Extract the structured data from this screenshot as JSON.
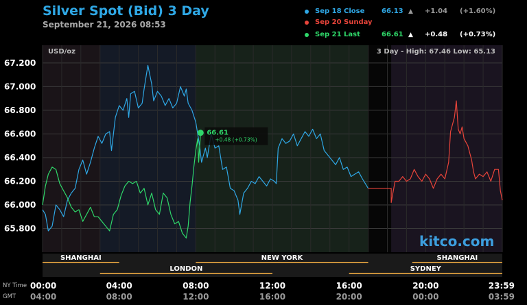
{
  "header": {
    "title": "Silver Spot (Bid) 3 Day",
    "subtitle": "September 21, 2026 08:53"
  },
  "legend": [
    {
      "name": "Sep 18 Close",
      "price": "66.13",
      "arrow": "▲",
      "change": "+1.04",
      "percent": "(+1.60%)",
      "color": "#2fa8e6",
      "textcolor": "#2fa8e6",
      "valcolor": "#999999"
    },
    {
      "name": "Sep 20 Sunday",
      "price": "",
      "arrow": "",
      "change": "",
      "percent": "",
      "color": "#e8443a",
      "textcolor": "#e8443a",
      "valcolor": "#999999"
    },
    {
      "name": "Sep 21 Last",
      "price": "66.61",
      "arrow": "▲",
      "change": "+0.48",
      "percent": "(+0.73%)",
      "color": "#2fd86a",
      "textcolor": "#2fd86a",
      "valcolor": "#ffffff"
    }
  ],
  "unit_label": "USD/oz",
  "range_text": "3 Day - High: 67.46  Low: 65.13",
  "brand": "kitco.com",
  "annotation": {
    "price": "66.61",
    "change": "+0.48 (+0.73%)",
    "x": 8.25,
    "y": 66.61
  },
  "sessions_top": [
    {
      "label": "SHANGHAI",
      "start": 0,
      "end": 4
    },
    {
      "label": "NEW YORK",
      "start": 8,
      "end": 17
    },
    {
      "label": "SHANGHAI",
      "start": 19.3,
      "end": 24
    }
  ],
  "sessions_bottom": [
    {
      "label": "LONDON",
      "start": 3,
      "end": 12
    },
    {
      "label": "SYDNEY",
      "start": 16,
      "end": 24
    }
  ],
  "time_axis": {
    "row1_label": "NY Time",
    "row2_label": "GMT",
    "ticks": [
      {
        "x": 0,
        "ny": "00:00",
        "gmt": "04:00"
      },
      {
        "x": 4,
        "ny": "04:00",
        "gmt": "08:00"
      },
      {
        "x": 8,
        "ny": "08:00",
        "gmt": "12:00"
      },
      {
        "x": 12,
        "ny": "12:00",
        "gmt": "16:00"
      },
      {
        "x": 16,
        "ny": "16:00",
        "gmt": "20:00"
      },
      {
        "x": 20,
        "ny": "20:00",
        "gmt": "00:00"
      },
      {
        "x": 24,
        "ny": "23:59",
        "gmt": "03:59"
      }
    ]
  },
  "colors": {
    "day1": "#2fa8e6",
    "day2": "#e8443a",
    "day3": "#2fd86a",
    "session_line": "#c8903a",
    "grid": "#3a3a3a"
  },
  "chart_data": {
    "type": "line",
    "x_unit": "hours (NY time)",
    "xlim": [
      0,
      24
    ],
    "ylim": [
      65.6,
      67.35
    ],
    "yticks": [
      65.8,
      66.0,
      66.2,
      66.4,
      66.6,
      66.8,
      67.0,
      67.2
    ],
    "ytick_labels": [
      "65.800",
      "66.000",
      "66.200",
      "66.400",
      "66.600",
      "66.800",
      "67.000",
      "67.200"
    ],
    "grid": true,
    "series": [
      {
        "name": "Sep 18 Close",
        "points": [
          [
            0,
            65.96
          ],
          [
            0.15,
            65.92
          ],
          [
            0.3,
            65.78
          ],
          [
            0.5,
            65.82
          ],
          [
            0.7,
            66.0
          ],
          [
            0.9,
            65.96
          ],
          [
            1.1,
            65.9
          ],
          [
            1.3,
            66.04
          ],
          [
            1.5,
            66.1
          ],
          [
            1.7,
            66.14
          ],
          [
            1.9,
            66.3
          ],
          [
            2.1,
            66.38
          ],
          [
            2.3,
            66.26
          ],
          [
            2.5,
            66.36
          ],
          [
            2.7,
            66.48
          ],
          [
            2.9,
            66.58
          ],
          [
            3.1,
            66.52
          ],
          [
            3.3,
            66.6
          ],
          [
            3.5,
            66.62
          ],
          [
            3.6,
            66.46
          ],
          [
            3.8,
            66.74
          ],
          [
            4.0,
            66.84
          ],
          [
            4.2,
            66.8
          ],
          [
            4.4,
            66.9
          ],
          [
            4.5,
            66.74
          ],
          [
            4.6,
            66.94
          ],
          [
            4.8,
            66.96
          ],
          [
            5.0,
            66.82
          ],
          [
            5.2,
            66.86
          ],
          [
            5.3,
            66.98
          ],
          [
            5.5,
            67.18
          ],
          [
            5.6,
            67.1
          ],
          [
            5.7,
            67.02
          ],
          [
            5.8,
            66.88
          ],
          [
            6.0,
            66.96
          ],
          [
            6.2,
            66.92
          ],
          [
            6.4,
            66.84
          ],
          [
            6.6,
            66.9
          ],
          [
            6.8,
            66.82
          ],
          [
            7.0,
            66.86
          ],
          [
            7.2,
            67.0
          ],
          [
            7.4,
            66.92
          ],
          [
            7.5,
            66.98
          ],
          [
            7.6,
            66.86
          ],
          [
            7.8,
            66.8
          ],
          [
            8.0,
            66.7
          ],
          [
            8.2,
            66.5
          ],
          [
            8.3,
            66.36
          ],
          [
            8.5,
            66.48
          ],
          [
            8.6,
            66.4
          ],
          [
            8.8,
            66.6
          ],
          [
            9.0,
            66.48
          ],
          [
            9.2,
            66.5
          ],
          [
            9.4,
            66.3
          ],
          [
            9.6,
            66.32
          ],
          [
            9.8,
            66.14
          ],
          [
            10.0,
            66.12
          ],
          [
            10.2,
            66.04
          ],
          [
            10.3,
            65.92
          ],
          [
            10.5,
            66.1
          ],
          [
            10.7,
            66.14
          ],
          [
            10.9,
            66.2
          ],
          [
            11.1,
            66.18
          ],
          [
            11.3,
            66.24
          ],
          [
            11.5,
            66.2
          ],
          [
            11.7,
            66.16
          ],
          [
            11.9,
            66.22
          ],
          [
            12.1,
            66.2
          ],
          [
            12.2,
            66.18
          ],
          [
            12.3,
            66.48
          ],
          [
            12.5,
            66.56
          ],
          [
            12.7,
            66.52
          ],
          [
            12.9,
            66.54
          ],
          [
            13.1,
            66.6
          ],
          [
            13.3,
            66.5
          ],
          [
            13.5,
            66.56
          ],
          [
            13.7,
            66.62
          ],
          [
            13.9,
            66.58
          ],
          [
            14.1,
            66.64
          ],
          [
            14.3,
            66.56
          ],
          [
            14.5,
            66.6
          ],
          [
            14.7,
            66.46
          ],
          [
            14.9,
            66.42
          ],
          [
            15.1,
            66.38
          ],
          [
            15.3,
            66.34
          ],
          [
            15.5,
            66.4
          ],
          [
            15.7,
            66.3
          ],
          [
            15.9,
            66.32
          ],
          [
            16.1,
            66.24
          ],
          [
            16.3,
            66.26
          ],
          [
            16.5,
            66.28
          ],
          [
            16.7,
            66.22
          ],
          [
            16.85,
            66.18
          ],
          [
            17.0,
            66.14
          ]
        ]
      },
      {
        "name": "Sep 20 Sunday",
        "points": [
          [
            17.0,
            66.14
          ],
          [
            18.2,
            66.14
          ],
          [
            18.2,
            66.02
          ],
          [
            18.4,
            66.2
          ],
          [
            18.6,
            66.2
          ],
          [
            18.8,
            66.24
          ],
          [
            19.0,
            66.2
          ],
          [
            19.2,
            66.22
          ],
          [
            19.4,
            66.3
          ],
          [
            19.6,
            66.24
          ],
          [
            19.8,
            66.2
          ],
          [
            20.0,
            66.26
          ],
          [
            20.2,
            66.22
          ],
          [
            20.4,
            66.14
          ],
          [
            20.6,
            66.22
          ],
          [
            20.8,
            66.26
          ],
          [
            21.0,
            66.22
          ],
          [
            21.2,
            66.36
          ],
          [
            21.3,
            66.62
          ],
          [
            21.5,
            66.74
          ],
          [
            21.6,
            66.88
          ],
          [
            21.7,
            66.64
          ],
          [
            21.8,
            66.6
          ],
          [
            21.9,
            66.66
          ],
          [
            22.0,
            66.56
          ],
          [
            22.2,
            66.5
          ],
          [
            22.4,
            66.38
          ],
          [
            22.5,
            66.28
          ],
          [
            22.6,
            66.22
          ],
          [
            22.8,
            66.26
          ],
          [
            23.0,
            66.24
          ],
          [
            23.2,
            66.28
          ],
          [
            23.4,
            66.2
          ],
          [
            23.6,
            66.3
          ],
          [
            23.8,
            66.3
          ],
          [
            23.9,
            66.12
          ],
          [
            24.0,
            66.04
          ]
        ]
      },
      {
        "name": "Sep 21 Last",
        "points": [
          [
            0,
            66.0
          ],
          [
            0.15,
            66.16
          ],
          [
            0.3,
            66.26
          ],
          [
            0.5,
            66.32
          ],
          [
            0.7,
            66.3
          ],
          [
            0.9,
            66.18
          ],
          [
            1.1,
            66.12
          ],
          [
            1.3,
            66.06
          ],
          [
            1.5,
            65.98
          ],
          [
            1.7,
            65.94
          ],
          [
            1.9,
            65.96
          ],
          [
            2.1,
            65.86
          ],
          [
            2.3,
            65.92
          ],
          [
            2.5,
            65.98
          ],
          [
            2.7,
            65.9
          ],
          [
            2.9,
            65.9
          ],
          [
            3.1,
            65.86
          ],
          [
            3.3,
            65.82
          ],
          [
            3.5,
            65.78
          ],
          [
            3.7,
            65.92
          ],
          [
            3.9,
            65.96
          ],
          [
            4.1,
            66.08
          ],
          [
            4.3,
            66.16
          ],
          [
            4.5,
            66.2
          ],
          [
            4.7,
            66.18
          ],
          [
            4.9,
            66.2
          ],
          [
            5.1,
            66.1
          ],
          [
            5.3,
            66.14
          ],
          [
            5.5,
            66.0
          ],
          [
            5.7,
            66.1
          ],
          [
            5.9,
            65.96
          ],
          [
            6.1,
            65.92
          ],
          [
            6.3,
            66.1
          ],
          [
            6.5,
            66.06
          ],
          [
            6.7,
            65.92
          ],
          [
            6.9,
            65.84
          ],
          [
            7.1,
            65.86
          ],
          [
            7.3,
            65.76
          ],
          [
            7.5,
            65.72
          ],
          [
            7.6,
            65.82
          ],
          [
            7.7,
            66.02
          ],
          [
            7.8,
            66.16
          ],
          [
            7.9,
            66.32
          ],
          [
            8.0,
            66.46
          ],
          [
            8.1,
            66.56
          ],
          [
            8.15,
            66.36
          ],
          [
            8.25,
            66.61
          ]
        ]
      }
    ]
  }
}
